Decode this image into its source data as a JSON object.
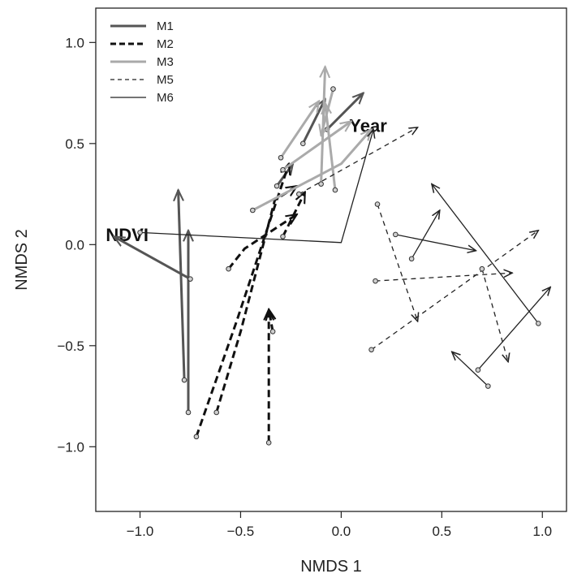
{
  "chart_data": {
    "type": "line",
    "title": "",
    "xlabel": "NMDS 1",
    "ylabel": "NMDS 2",
    "xlim": [
      -1.22,
      1.12
    ],
    "ylim": [
      -1.32,
      1.17
    ],
    "xticks": [
      -1.0,
      -0.5,
      0.0,
      0.5,
      1.0
    ],
    "yticks": [
      -1.0,
      -0.5,
      0.0,
      0.5,
      1.0
    ],
    "xtick_labels": [
      "−1.0",
      "−0.5",
      "0.0",
      "0.5",
      "1.0"
    ],
    "ytick_labels": [
      "−1.0",
      "−0.5",
      "0.0",
      "0.5",
      "1.0"
    ],
    "grid": false,
    "legend_position": "top-left",
    "series": [
      {
        "name": "M1",
        "color": "#555555",
        "dash": "solid",
        "width": 3,
        "segments": [
          [
            [
              -0.78,
              -0.67
            ],
            [
              -0.81,
              0.27
            ]
          ],
          [
            [
              -0.76,
              -0.83
            ],
            [
              -0.76,
              0.07
            ]
          ],
          [
            [
              -0.75,
              -0.17
            ],
            [
              -1.13,
              0.04
            ]
          ],
          [
            [
              -0.32,
              0.29
            ],
            [
              -0.24,
              0.4
            ]
          ],
          [
            [
              -0.19,
              0.5
            ],
            [
              -0.08,
              0.72
            ]
          ],
          [
            [
              -0.07,
              0.57
            ],
            [
              0.11,
              0.75
            ]
          ]
        ]
      },
      {
        "name": "M2",
        "color": "#111111",
        "dash": "heavy-dash",
        "width": 3,
        "segments": [
          [
            [
              -0.72,
              -0.95
            ],
            [
              -0.52,
              -0.38
            ],
            [
              -0.26,
              0.4
            ]
          ],
          [
            [
              -0.62,
              -0.83
            ],
            [
              -0.5,
              -0.43
            ],
            [
              -0.33,
              0.22
            ],
            [
              -0.22,
              0.29
            ]
          ],
          [
            [
              -0.36,
              -0.98
            ],
            [
              -0.36,
              -0.32
            ]
          ],
          [
            [
              -0.34,
              -0.43
            ],
            [
              -0.36,
              -0.32
            ]
          ],
          [
            [
              -0.56,
              -0.12
            ],
            [
              -0.48,
              -0.02
            ],
            [
              -0.22,
              0.15
            ]
          ],
          [
            [
              -0.29,
              0.04
            ],
            [
              -0.18,
              0.26
            ]
          ]
        ]
      },
      {
        "name": "M3",
        "color": "#aaaaaa",
        "dash": "solid",
        "width": 3,
        "segments": [
          [
            [
              -0.3,
              0.43
            ],
            [
              -0.11,
              0.71
            ]
          ],
          [
            [
              -0.03,
              0.27
            ],
            [
              -0.08,
              0.7
            ]
          ],
          [
            [
              -0.04,
              0.77
            ],
            [
              -0.1,
              0.54
            ]
          ],
          [
            [
              -0.1,
              0.3
            ],
            [
              -0.08,
              0.88
            ]
          ],
          [
            [
              -0.44,
              0.17
            ],
            [
              0.0,
              0.4
            ],
            [
              0.15,
              0.57
            ]
          ],
          [
            [
              -0.29,
              0.37
            ],
            [
              0.05,
              0.61
            ]
          ]
        ]
      },
      {
        "name": "M5",
        "color": "#222222",
        "dash": "thin-dash",
        "width": 1.3,
        "segments": [
          [
            [
              -0.21,
              0.25
            ],
            [
              0.38,
              0.58
            ]
          ],
          [
            [
              0.18,
              0.2
            ],
            [
              0.38,
              -0.38
            ]
          ],
          [
            [
              0.15,
              -0.52
            ],
            [
              0.98,
              0.07
            ]
          ],
          [
            [
              0.17,
              -0.18
            ],
            [
              0.85,
              -0.14
            ]
          ],
          [
            [
              0.7,
              -0.12
            ],
            [
              0.83,
              -0.58
            ]
          ]
        ]
      },
      {
        "name": "M6",
        "color": "#222222",
        "dash": "solid",
        "width": 1.3,
        "segments": [
          [
            [
              -1.0,
              0.06
            ],
            [
              0.0,
              0.01
            ],
            [
              0.16,
              0.57
            ]
          ],
          [
            [
              0.27,
              0.05
            ],
            [
              0.67,
              -0.03
            ]
          ],
          [
            [
              0.98,
              -0.39
            ],
            [
              0.45,
              0.3
            ]
          ],
          [
            [
              0.35,
              -0.07
            ],
            [
              0.49,
              0.17
            ]
          ],
          [
            [
              0.73,
              -0.7
            ],
            [
              0.55,
              -0.53
            ]
          ],
          [
            [
              0.68,
              -0.62
            ],
            [
              1.04,
              -0.21
            ]
          ]
        ]
      }
    ],
    "vector_labels": [
      {
        "text": "NDVI",
        "x": -1.17,
        "y": 0.05
      },
      {
        "text": "Year",
        "x": 0.04,
        "y": 0.59
      }
    ]
  }
}
